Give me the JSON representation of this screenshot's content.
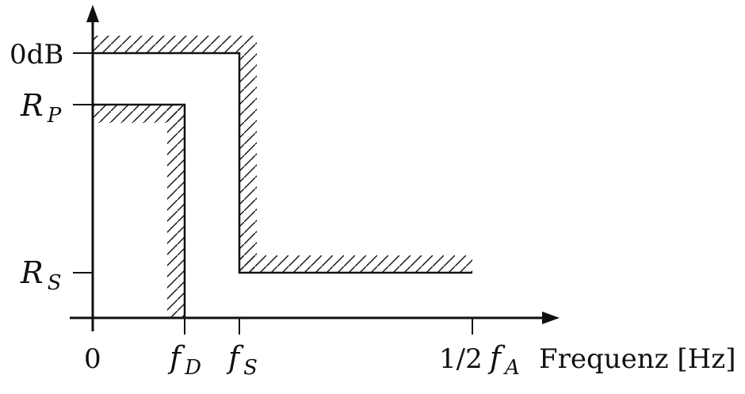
{
  "diagram": {
    "y_labels": {
      "zero_db": "0dB",
      "rp_main": "R",
      "rp_sub": "P",
      "rs_main": "R",
      "rs_sub": "S"
    },
    "x_labels": {
      "origin": "0",
      "fd_main": "f",
      "fd_sub": "D",
      "fs_main": "f",
      "fs_sub": "S",
      "half_fa_prefix": "1/2",
      "half_fa_main": "f",
      "half_fa_sub": "A",
      "axis_title": "Frequenz [Hz]"
    },
    "colors": {
      "stroke": "#111111",
      "background": "#ffffff"
    }
  }
}
